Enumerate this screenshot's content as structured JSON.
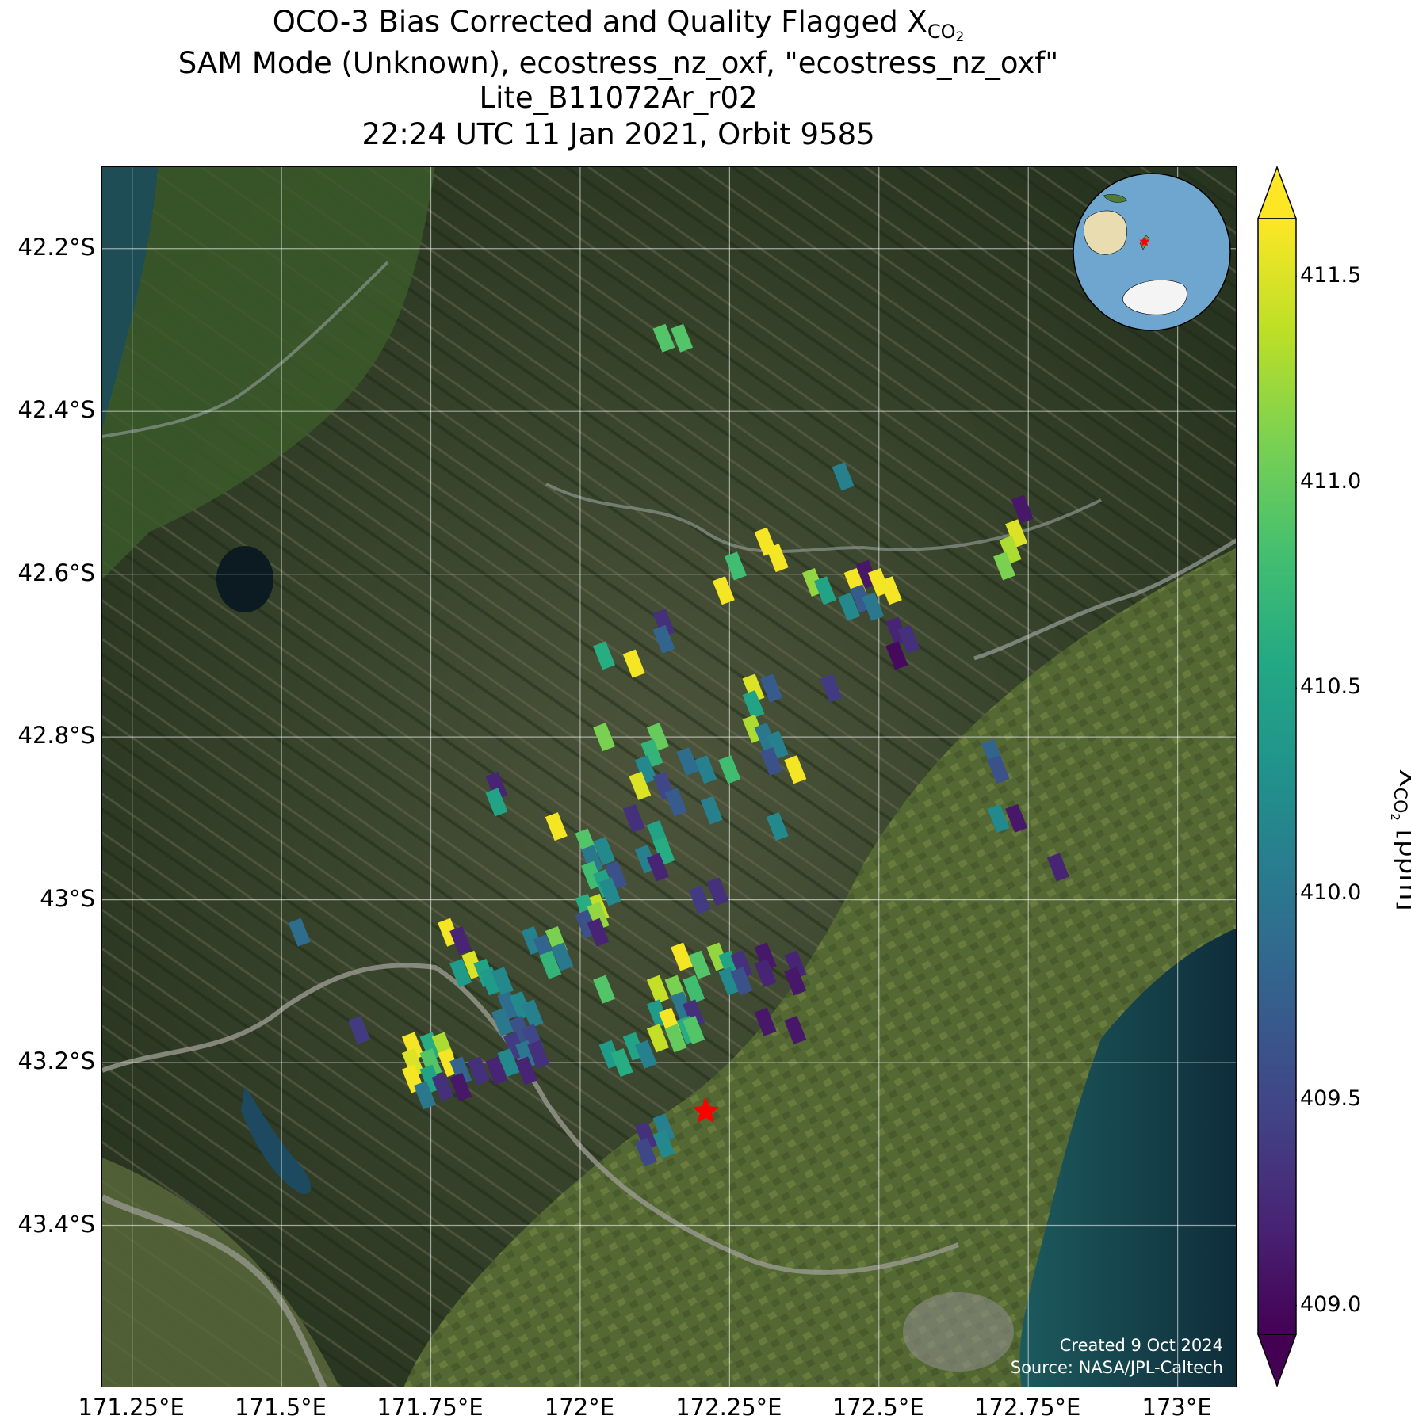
{
  "title": {
    "line1_prefix": "OCO-3 Bias Corrected and Quality Flagged X",
    "line1_sub": "CO",
    "line1_sub2": "2",
    "line2": "SAM Mode (Unknown), ecostress_nz_oxf, \"ecostress_nz_oxf\"",
    "line3": "Lite_B11072Ar_r02",
    "line4": "22:24 UTC 11 Jan 2021, Orbit 9585"
  },
  "map": {
    "lon_range": [
      171.2,
      173.1
    ],
    "lat_range": [
      -43.6,
      -42.1
    ],
    "lon_ticks": [
      {
        "value": 171.25,
        "label": "171.25°E"
      },
      {
        "value": 171.5,
        "label": "171.5°E"
      },
      {
        "value": 171.75,
        "label": "171.75°E"
      },
      {
        "value": 172.0,
        "label": "172°E"
      },
      {
        "value": 172.25,
        "label": "172.25°E"
      },
      {
        "value": 172.5,
        "label": "172.5°E"
      },
      {
        "value": 172.75,
        "label": "172.75°E"
      },
      {
        "value": 173.0,
        "label": "173°E"
      }
    ],
    "lat_ticks": [
      {
        "value": -42.2,
        "label": "42.2°S"
      },
      {
        "value": -42.4,
        "label": "42.4°S"
      },
      {
        "value": -42.6,
        "label": "42.6°S"
      },
      {
        "value": -42.8,
        "label": "42.8°S"
      },
      {
        "value": -43.0,
        "label": "43°S"
      },
      {
        "value": -43.2,
        "label": "43.2°S"
      },
      {
        "value": -43.4,
        "label": "43.4°S"
      }
    ],
    "grid": true,
    "basemap": "satellite imagery (mountains, lakes, ocean on east coast)",
    "target_marker": {
      "lon": 172.21,
      "lat": -43.26,
      "color": "#ff0000",
      "shape": "star"
    },
    "colors": {
      "mountain": "#3a4a2a",
      "plain": "#5a6a3a",
      "ocean": "#163b45",
      "river": "#9a9a90"
    }
  },
  "credit": {
    "line1": "Created 9 Oct 2024",
    "line2": "Source: NASA/JPL-Caltech"
  },
  "inset_globe": {
    "ocean_color": "#6fa6cf",
    "marker_color": "#ff0000"
  },
  "colorbar": {
    "min": 408.93,
    "max": 411.64,
    "ticks": [
      {
        "value": 409.0,
        "label": "409.0"
      },
      {
        "value": 409.5,
        "label": "409.5"
      },
      {
        "value": 410.0,
        "label": "410.0"
      },
      {
        "value": 410.5,
        "label": "410.5"
      },
      {
        "value": 411.0,
        "label": "411.0"
      },
      {
        "value": 411.5,
        "label": "411.5"
      }
    ],
    "label_prefix": "X",
    "label_sub": "CO",
    "label_sub2": "2",
    "label_suffix": " [ppm]",
    "extend": "both"
  },
  "chart_data": {
    "type": "scatter",
    "xlabel": "",
    "ylabel": "",
    "xlim": [
      171.2,
      173.1
    ],
    "ylim": [
      -43.6,
      -42.1
    ],
    "colorscale": "viridis",
    "points": [
      {
        "lon": 172.14,
        "lat": -42.31,
        "xco2": 410.9
      },
      {
        "lon": 172.17,
        "lat": -42.31,
        "xco2": 410.9
      },
      {
        "lon": 172.44,
        "lat": -42.48,
        "xco2": 410.1
      },
      {
        "lon": 172.74,
        "lat": -42.52,
        "xco2": 409.1
      },
      {
        "lon": 172.73,
        "lat": -42.55,
        "xco2": 411.5
      },
      {
        "lon": 172.72,
        "lat": -42.57,
        "xco2": 411.3
      },
      {
        "lon": 172.71,
        "lat": -42.59,
        "xco2": 411.1
      },
      {
        "lon": 172.31,
        "lat": -42.56,
        "xco2": 411.6
      },
      {
        "lon": 172.33,
        "lat": -42.58,
        "xco2": 411.6
      },
      {
        "lon": 172.26,
        "lat": -42.59,
        "xco2": 410.8
      },
      {
        "lon": 172.24,
        "lat": -42.62,
        "xco2": 411.6
      },
      {
        "lon": 172.39,
        "lat": -42.61,
        "xco2": 411.2
      },
      {
        "lon": 172.41,
        "lat": -42.62,
        "xco2": 410.5
      },
      {
        "lon": 172.46,
        "lat": -42.61,
        "xco2": 411.6
      },
      {
        "lon": 172.47,
        "lat": -42.63,
        "xco2": 409.7
      },
      {
        "lon": 172.45,
        "lat": -42.64,
        "xco2": 410.2
      },
      {
        "lon": 172.48,
        "lat": -42.6,
        "xco2": 409.1
      },
      {
        "lon": 172.5,
        "lat": -42.61,
        "xco2": 411.6
      },
      {
        "lon": 172.52,
        "lat": -42.62,
        "xco2": 411.6
      },
      {
        "lon": 172.49,
        "lat": -42.64,
        "xco2": 410.0
      },
      {
        "lon": 172.53,
        "lat": -42.67,
        "xco2": 409.2
      },
      {
        "lon": 172.53,
        "lat": -42.7,
        "xco2": 409.0
      },
      {
        "lon": 172.55,
        "lat": -42.68,
        "xco2": 409.3
      },
      {
        "lon": 172.14,
        "lat": -42.66,
        "xco2": 409.3
      },
      {
        "lon": 172.14,
        "lat": -42.68,
        "xco2": 409.8
      },
      {
        "lon": 172.04,
        "lat": -42.7,
        "xco2": 410.6
      },
      {
        "lon": 172.09,
        "lat": -42.71,
        "xco2": 411.6
      },
      {
        "lon": 172.29,
        "lat": -42.74,
        "xco2": 411.5
      },
      {
        "lon": 172.29,
        "lat": -42.76,
        "xco2": 410.5
      },
      {
        "lon": 172.32,
        "lat": -42.74,
        "xco2": 409.7
      },
      {
        "lon": 172.42,
        "lat": -42.74,
        "xco2": 409.4
      },
      {
        "lon": 172.29,
        "lat": -42.79,
        "xco2": 411.3
      },
      {
        "lon": 172.31,
        "lat": -42.8,
        "xco2": 410.0
      },
      {
        "lon": 172.33,
        "lat": -42.81,
        "xco2": 410.1
      },
      {
        "lon": 172.32,
        "lat": -42.83,
        "xco2": 409.6
      },
      {
        "lon": 172.36,
        "lat": -42.84,
        "xco2": 411.6
      },
      {
        "lon": 172.13,
        "lat": -42.8,
        "xco2": 411.0
      },
      {
        "lon": 172.12,
        "lat": -42.82,
        "xco2": 410.7
      },
      {
        "lon": 172.11,
        "lat": -42.84,
        "xco2": 410.2
      },
      {
        "lon": 172.1,
        "lat": -42.86,
        "xco2": 411.5
      },
      {
        "lon": 172.14,
        "lat": -42.86,
        "xco2": 409.5
      },
      {
        "lon": 172.18,
        "lat": -42.83,
        "xco2": 409.9
      },
      {
        "lon": 172.21,
        "lat": -42.84,
        "xco2": 410.1
      },
      {
        "lon": 172.25,
        "lat": -42.84,
        "xco2": 410.8
      },
      {
        "lon": 172.04,
        "lat": -42.8,
        "xco2": 411.1
      },
      {
        "lon": 172.16,
        "lat": -42.88,
        "xco2": 409.7
      },
      {
        "lon": 172.22,
        "lat": -42.89,
        "xco2": 410.1
      },
      {
        "lon": 172.33,
        "lat": -42.91,
        "xco2": 410.2
      },
      {
        "lon": 171.86,
        "lat": -42.86,
        "xco2": 409.2
      },
      {
        "lon": 171.86,
        "lat": -42.88,
        "xco2": 410.5
      },
      {
        "lon": 171.96,
        "lat": -42.91,
        "xco2": 411.6
      },
      {
        "lon": 172.09,
        "lat": -42.9,
        "xco2": 409.3
      },
      {
        "lon": 172.13,
        "lat": -42.92,
        "xco2": 410.5
      },
      {
        "lon": 172.01,
        "lat": -42.93,
        "xco2": 410.9
      },
      {
        "lon": 172.04,
        "lat": -42.94,
        "xco2": 410.2
      },
      {
        "lon": 172.02,
        "lat": -42.95,
        "xco2": 410.0
      },
      {
        "lon": 172.11,
        "lat": -42.95,
        "xco2": 410.1
      },
      {
        "lon": 172.14,
        "lat": -42.94,
        "xco2": 410.6
      },
      {
        "lon": 172.13,
        "lat": -42.96,
        "xco2": 409.2
      },
      {
        "lon": 172.02,
        "lat": -42.97,
        "xco2": 410.8
      },
      {
        "lon": 172.04,
        "lat": -42.98,
        "xco2": 410.5
      },
      {
        "lon": 172.06,
        "lat": -42.97,
        "xco2": 409.6
      },
      {
        "lon": 172.05,
        "lat": -42.99,
        "xco2": 410.2
      },
      {
        "lon": 172.03,
        "lat": -43.01,
        "xco2": 411.4
      },
      {
        "lon": 172.01,
        "lat": -43.01,
        "xco2": 410.6
      },
      {
        "lon": 172.03,
        "lat": -43.02,
        "xco2": 411.2
      },
      {
        "lon": 172.01,
        "lat": -43.03,
        "xco2": 409.6
      },
      {
        "lon": 172.03,
        "lat": -43.04,
        "xco2": 409.2
      },
      {
        "lon": 172.23,
        "lat": -42.99,
        "xco2": 409.3
      },
      {
        "lon": 172.2,
        "lat": -43.0,
        "xco2": 409.4
      },
      {
        "lon": 171.53,
        "lat": -43.04,
        "xco2": 409.9
      },
      {
        "lon": 171.78,
        "lat": -43.04,
        "xco2": 411.6
      },
      {
        "lon": 171.8,
        "lat": -43.05,
        "xco2": 409.2
      },
      {
        "lon": 171.92,
        "lat": -43.05,
        "xco2": 410.1
      },
      {
        "lon": 171.94,
        "lat": -43.06,
        "xco2": 409.8
      },
      {
        "lon": 171.96,
        "lat": -43.05,
        "xco2": 411.1
      },
      {
        "lon": 171.97,
        "lat": -43.07,
        "xco2": 410.0
      },
      {
        "lon": 171.95,
        "lat": -43.08,
        "xco2": 410.7
      },
      {
        "lon": 171.82,
        "lat": -43.08,
        "xco2": 411.5
      },
      {
        "lon": 171.8,
        "lat": -43.09,
        "xco2": 410.4
      },
      {
        "lon": 171.84,
        "lat": -43.09,
        "xco2": 410.5
      },
      {
        "lon": 171.85,
        "lat": -43.1,
        "xco2": 410.4
      },
      {
        "lon": 171.87,
        "lat": -43.1,
        "xco2": 410.2
      },
      {
        "lon": 172.17,
        "lat": -43.07,
        "xco2": 411.6
      },
      {
        "lon": 172.2,
        "lat": -43.08,
        "xco2": 410.9
      },
      {
        "lon": 172.23,
        "lat": -43.07,
        "xco2": 411.2
      },
      {
        "lon": 172.25,
        "lat": -43.08,
        "xco2": 410.5
      },
      {
        "lon": 172.27,
        "lat": -43.08,
        "xco2": 409.3
      },
      {
        "lon": 172.31,
        "lat": -43.07,
        "xco2": 409.1
      },
      {
        "lon": 172.31,
        "lat": -43.09,
        "xco2": 409.2
      },
      {
        "lon": 172.25,
        "lat": -43.1,
        "xco2": 410.2
      },
      {
        "lon": 172.27,
        "lat": -43.1,
        "xco2": 409.6
      },
      {
        "lon": 172.04,
        "lat": -43.11,
        "xco2": 410.9
      },
      {
        "lon": 172.13,
        "lat": -43.11,
        "xco2": 411.4
      },
      {
        "lon": 172.16,
        "lat": -43.11,
        "xco2": 411.1
      },
      {
        "lon": 172.19,
        "lat": -43.11,
        "xco2": 410.8
      },
      {
        "lon": 172.13,
        "lat": -43.14,
        "xco2": 410.4
      },
      {
        "lon": 172.17,
        "lat": -43.13,
        "xco2": 410.0
      },
      {
        "lon": 172.19,
        "lat": -43.14,
        "xco2": 409.3
      },
      {
        "lon": 172.15,
        "lat": -43.15,
        "xco2": 411.6
      },
      {
        "lon": 172.18,
        "lat": -43.16,
        "xco2": 410.6
      },
      {
        "lon": 172.13,
        "lat": -43.17,
        "xco2": 411.4
      },
      {
        "lon": 172.16,
        "lat": -43.17,
        "xco2": 411.0
      },
      {
        "lon": 172.19,
        "lat": -43.16,
        "xco2": 410.9
      },
      {
        "lon": 172.09,
        "lat": -43.18,
        "xco2": 410.5
      },
      {
        "lon": 172.11,
        "lat": -43.19,
        "xco2": 410.1
      },
      {
        "lon": 172.05,
        "lat": -43.19,
        "xco2": 410.4
      },
      {
        "lon": 172.07,
        "lat": -43.2,
        "xco2": 410.6
      },
      {
        "lon": 172.31,
        "lat": -43.15,
        "xco2": 409.1
      },
      {
        "lon": 171.88,
        "lat": -43.13,
        "xco2": 409.9
      },
      {
        "lon": 171.9,
        "lat": -43.13,
        "xco2": 410.2
      },
      {
        "lon": 171.92,
        "lat": -43.14,
        "xco2": 410.1
      },
      {
        "lon": 171.87,
        "lat": -43.15,
        "xco2": 410.0
      },
      {
        "lon": 171.9,
        "lat": -43.16,
        "xco2": 409.6
      },
      {
        "lon": 171.92,
        "lat": -43.17,
        "xco2": 409.5
      },
      {
        "lon": 171.89,
        "lat": -43.18,
        "xco2": 409.4
      },
      {
        "lon": 171.91,
        "lat": -43.19,
        "xco2": 410.0
      },
      {
        "lon": 171.93,
        "lat": -43.19,
        "xco2": 409.3
      },
      {
        "lon": 171.88,
        "lat": -43.2,
        "xco2": 410.2
      },
      {
        "lon": 171.91,
        "lat": -43.21,
        "xco2": 409.2
      },
      {
        "lon": 171.63,
        "lat": -43.16,
        "xco2": 409.4
      },
      {
        "lon": 171.72,
        "lat": -43.18,
        "xco2": 411.6
      },
      {
        "lon": 171.75,
        "lat": -43.18,
        "xco2": 410.6
      },
      {
        "lon": 171.77,
        "lat": -43.18,
        "xco2": 411.3
      },
      {
        "lon": 171.72,
        "lat": -43.2,
        "xco2": 411.5
      },
      {
        "lon": 171.75,
        "lat": -43.2,
        "xco2": 410.9
      },
      {
        "lon": 171.78,
        "lat": -43.2,
        "xco2": 411.6
      },
      {
        "lon": 171.8,
        "lat": -43.21,
        "xco2": 409.8
      },
      {
        "lon": 171.83,
        "lat": -43.21,
        "xco2": 409.3
      },
      {
        "lon": 171.86,
        "lat": -43.21,
        "xco2": 409.2
      },
      {
        "lon": 171.72,
        "lat": -43.22,
        "xco2": 411.6
      },
      {
        "lon": 171.75,
        "lat": -43.22,
        "xco2": 410.5
      },
      {
        "lon": 171.77,
        "lat": -43.23,
        "xco2": 409.3
      },
      {
        "lon": 171.8,
        "lat": -43.23,
        "xco2": 409.1
      },
      {
        "lon": 171.74,
        "lat": -43.24,
        "xco2": 410.0
      },
      {
        "lon": 172.69,
        "lat": -42.82,
        "xco2": 409.8
      },
      {
        "lon": 172.7,
        "lat": -42.84,
        "xco2": 409.6
      },
      {
        "lon": 172.7,
        "lat": -42.9,
        "xco2": 410.2
      },
      {
        "lon": 172.73,
        "lat": -42.9,
        "xco2": 409.1
      },
      {
        "lon": 172.8,
        "lat": -42.96,
        "xco2": 409.2
      },
      {
        "lon": 172.36,
        "lat": -43.08,
        "xco2": 409.2
      },
      {
        "lon": 172.36,
        "lat": -43.1,
        "xco2": 409.1
      },
      {
        "lon": 172.36,
        "lat": -43.16,
        "xco2": 409.1
      },
      {
        "lon": 172.11,
        "lat": -43.29,
        "xco2": 409.3
      },
      {
        "lon": 172.14,
        "lat": -43.28,
        "xco2": 410.1
      },
      {
        "lon": 172.11,
        "lat": -43.31,
        "xco2": 409.5
      },
      {
        "lon": 172.14,
        "lat": -43.3,
        "xco2": 410.2
      }
    ]
  }
}
